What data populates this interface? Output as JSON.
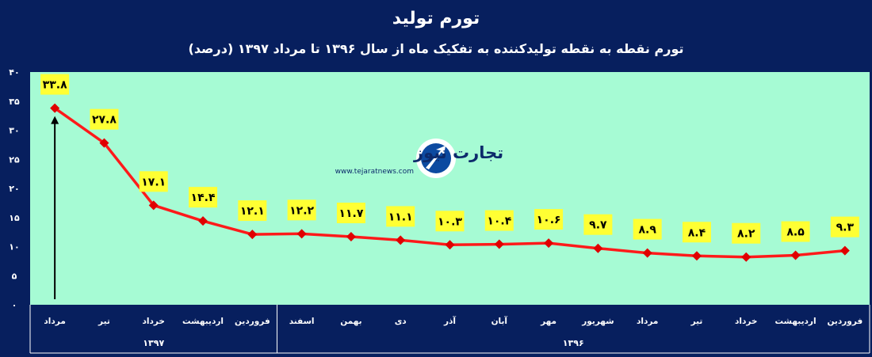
{
  "chart_data": {
    "type": "line",
    "title": "تورم تولید",
    "subtitle": "تورم نقطه به نقطه تولیدکننده به تفکیک ماه  از سال ۱۳۹۶ تا مرداد ۱۳۹۷ (درصد)",
    "categories": [
      "فروردین",
      "اردیبهشت",
      "خرداد",
      "تیر",
      "مرداد",
      "شهریور",
      "مهر",
      "آبان",
      "آذر",
      "دی",
      "بهمن",
      "اسفند",
      "فروردین",
      "اردیبهشت",
      "خرداد",
      "تیر",
      "مرداد"
    ],
    "values": [
      9.3,
      8.5,
      8.2,
      8.4,
      8.9,
      9.7,
      10.6,
      10.4,
      10.3,
      11.1,
      11.7,
      12.2,
      12.1,
      14.4,
      17.1,
      27.8,
      33.8
    ],
    "data_labels": [
      "۹.۳",
      "۸.۵",
      "۸.۲",
      "۸.۴",
      "۸.۹",
      "۹.۷",
      "۱۰.۶",
      "۱۰.۴",
      "۱۰.۳",
      "۱۱.۱",
      "۱۱.۷",
      "۱۲.۲",
      "۱۲.۱",
      "۱۴.۴",
      "۱۷.۱",
      "۲۷.۸",
      "۳۳.۸"
    ],
    "y_ticks": [
      0,
      5,
      10,
      15,
      20,
      25,
      30,
      35,
      40
    ],
    "y_tick_labels": [
      "۰",
      "۵",
      "۱۰",
      "۱۵",
      "۲۰",
      "۲۵",
      "۳۰",
      "۳۵",
      "۴۰"
    ],
    "ylim": [
      0,
      40
    ],
    "year_groups": [
      {
        "label": "۱۳۹۶",
        "count": 12
      },
      {
        "label": "۱۳۹۷",
        "count": 5
      }
    ],
    "grid": false,
    "colors": {
      "background": "#071f5e",
      "plot_area": "#a6fbd4",
      "line": "#ff1a1a",
      "marker": "#e00000",
      "label_box": "#ffff33",
      "arrow": "#000000"
    }
  },
  "logo": {
    "text": "تجارت نیوز",
    "url_text": "www.tejaratnews.com"
  }
}
